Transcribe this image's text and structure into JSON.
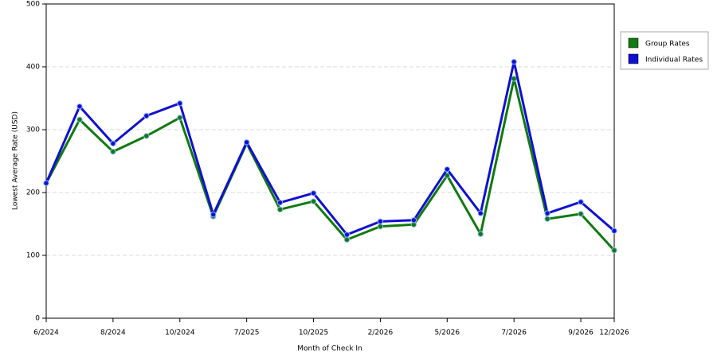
{
  "chart_data": {
    "type": "line",
    "x_label": "Month of Check In",
    "y_label": "Lowest Average Rate (USD)",
    "categories": [
      "6/2024",
      null,
      "8/2024",
      null,
      "10/2024",
      null,
      "7/2025",
      null,
      "10/2025",
      null,
      "2/2026",
      null,
      "5/2026",
      null,
      "7/2026",
      null,
      "9/2026",
      "12/2026"
    ],
    "series": [
      {
        "name": "Group Rates",
        "color": "#0f7a0f",
        "values": [
          215,
          316,
          265,
          290,
          319,
          162,
          278,
          173,
          186,
          125,
          146,
          149,
          227,
          134,
          381,
          158,
          166,
          108
        ]
      },
      {
        "name": "Individual Rates",
        "color": "#1010d0",
        "values": [
          215,
          337,
          278,
          322,
          342,
          165,
          280,
          184,
          199,
          133,
          154,
          156,
          237,
          167,
          408,
          167,
          185,
          139
        ]
      }
    ],
    "ylim": [
      0,
      500
    ],
    "yticks": [
      0,
      100,
      200,
      300,
      400,
      500
    ],
    "grid": true,
    "legend": "right"
  }
}
